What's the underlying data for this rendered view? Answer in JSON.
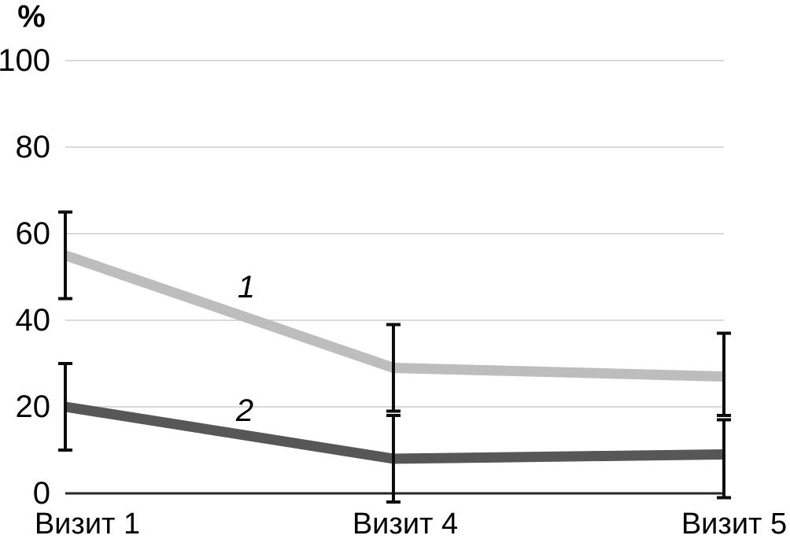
{
  "chart_data": {
    "type": "line",
    "title": "",
    "unit_label": "%",
    "xlabel": "",
    "ylabel": "%",
    "categories": [
      "Визит 1",
      "Визит 4",
      "Визит 5"
    ],
    "y_ticks": [
      0,
      20,
      40,
      60,
      80,
      100
    ],
    "ylim": [
      0,
      100
    ],
    "grid": true,
    "legend_position": "inline-annotations",
    "series": [
      {
        "name": "1",
        "color": "#bdbdbd",
        "values": [
          55,
          29,
          27
        ],
        "error_low": [
          45,
          19,
          18
        ],
        "error_high": [
          65,
          39,
          37
        ]
      },
      {
        "name": "2",
        "color": "#575757",
        "values": [
          20,
          8,
          9
        ],
        "error_low": [
          10,
          -2,
          -1
        ],
        "error_high": [
          30,
          18,
          17
        ]
      }
    ],
    "colors": {
      "grid": "#d9d9d9",
      "axis": "#262626",
      "error_bar": "#0d0d0d",
      "text": "#000000",
      "background": "#ffffff"
    }
  }
}
